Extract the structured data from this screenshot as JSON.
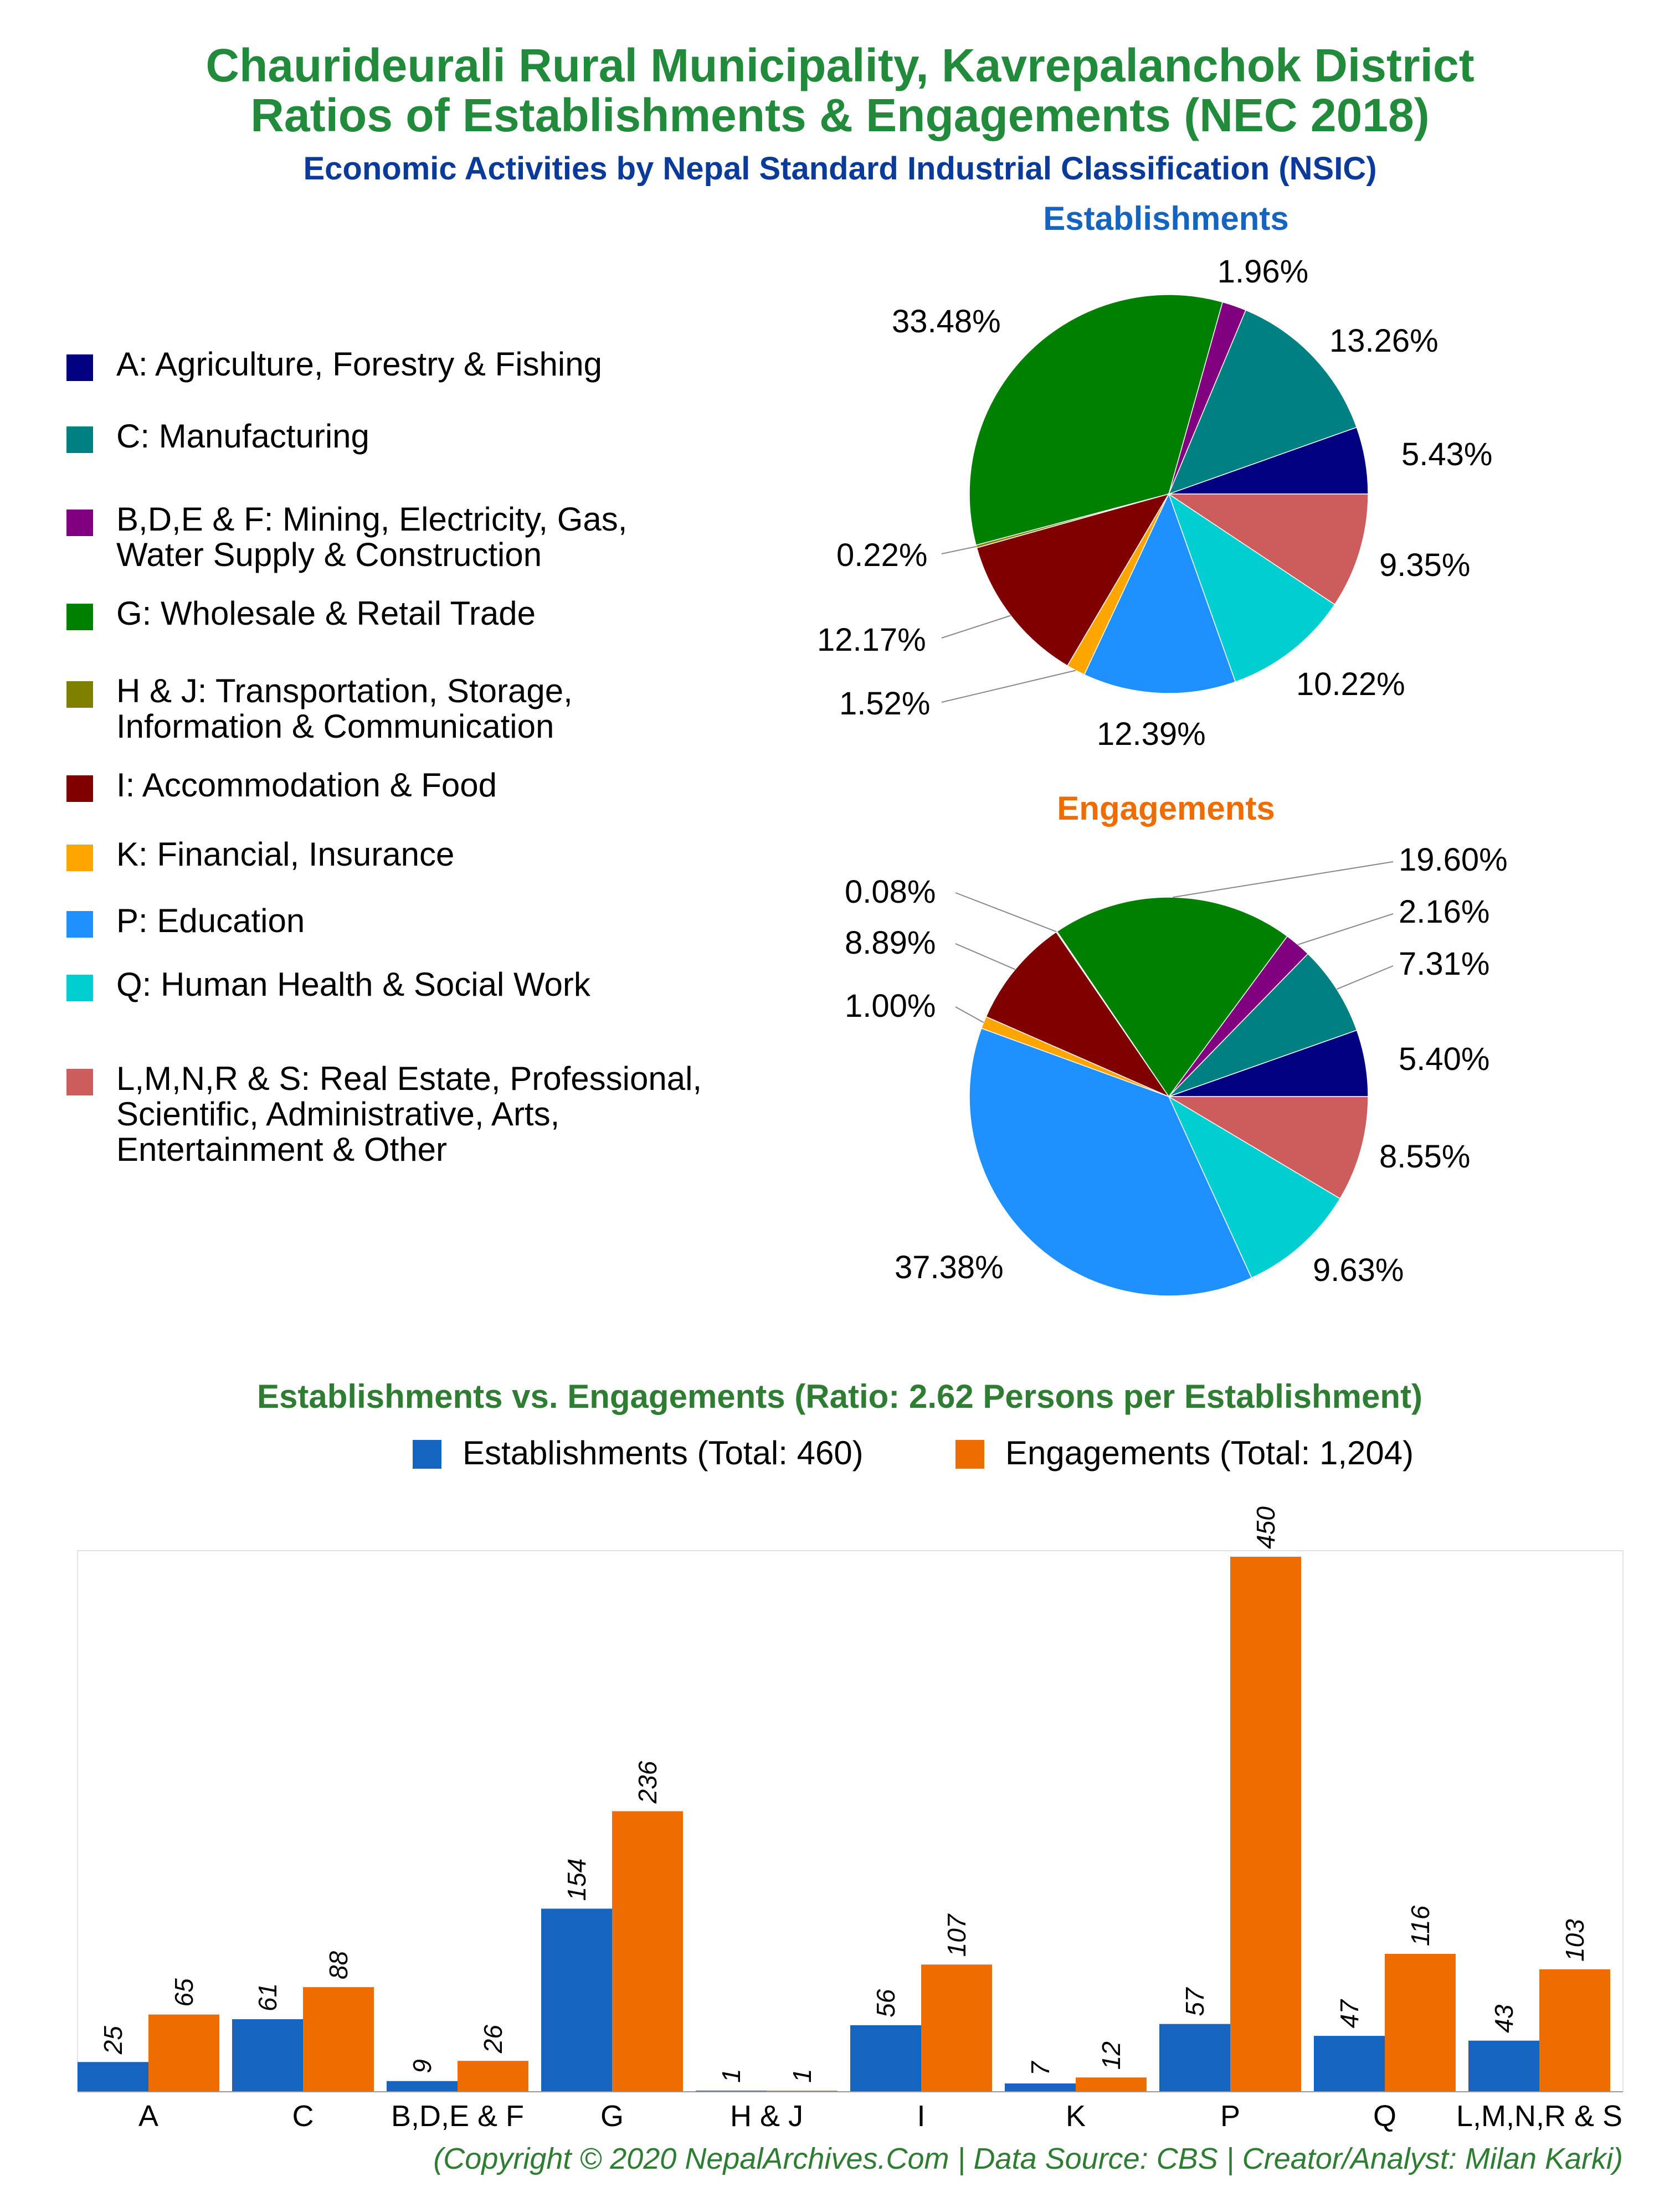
{
  "header": {
    "title_line1": "Chaurideurali Rural Municipality, Kavrepalanchok District",
    "title_line2": "Ratios of Establishments & Engagements (NEC 2018)",
    "subtitle": "Economic Activities by Nepal Standard Industrial Classification (NSIC)"
  },
  "legend": [
    {
      "label": "A: Agriculture, Forestry & Fishing",
      "color": "#000080"
    },
    {
      "label": "C: Manufacturing",
      "color": "#008080"
    },
    {
      "label": "B,D,E & F: Mining, Electricity, Gas,\nWater Supply & Construction",
      "color": "#800080"
    },
    {
      "label": "G: Wholesale & Retail Trade",
      "color": "#008000"
    },
    {
      "label": "H & J: Transportation, Storage,\nInformation & Communication",
      "color": "#808000"
    },
    {
      "label": "I: Accommodation & Food",
      "color": "#800000"
    },
    {
      "label": "K: Financial, Insurance",
      "color": "#ffa500"
    },
    {
      "label": "P: Education",
      "color": "#1e90ff"
    },
    {
      "label": "Q: Human Health & Social Work",
      "color": "#00ced1"
    },
    {
      "label": "L,M,N,R & S: Real Estate, Professional,\nScientific, Administrative, Arts,\nEntertainment & Other",
      "color": "#cd5c5c"
    }
  ],
  "chart_data": [
    {
      "type": "pie",
      "title": "Establishments",
      "title_color": "#1565c0",
      "slices": [
        {
          "category": "A",
          "value": 5.43,
          "label": "5.43%",
          "color": "#000080"
        },
        {
          "category": "C",
          "value": 13.26,
          "label": "13.26%",
          "color": "#008080"
        },
        {
          "category": "B,D,E & F",
          "value": 1.96,
          "label": "1.96%",
          "color": "#800080"
        },
        {
          "category": "G",
          "value": 33.48,
          "label": "33.48%",
          "color": "#008000"
        },
        {
          "category": "H & J",
          "value": 0.22,
          "label": "0.22%",
          "color": "#808000"
        },
        {
          "category": "I",
          "value": 12.17,
          "label": "12.17%",
          "color": "#800000"
        },
        {
          "category": "K",
          "value": 1.52,
          "label": "1.52%",
          "color": "#ffa500"
        },
        {
          "category": "P",
          "value": 12.39,
          "label": "12.39%",
          "color": "#1e90ff"
        },
        {
          "category": "Q",
          "value": 10.22,
          "label": "10.22%",
          "color": "#00ced1"
        },
        {
          "category": "L,M,N,R & S",
          "value": 9.35,
          "label": "9.35%",
          "color": "#cd5c5c"
        }
      ]
    },
    {
      "type": "pie",
      "title": "Engagements",
      "title_color": "#ef6c00",
      "slices": [
        {
          "category": "A",
          "value": 5.4,
          "label": "5.40%",
          "color": "#000080"
        },
        {
          "category": "C",
          "value": 7.31,
          "label": "7.31%",
          "color": "#008080"
        },
        {
          "category": "B,D,E & F",
          "value": 2.16,
          "label": "2.16%",
          "color": "#800080"
        },
        {
          "category": "G",
          "value": 19.6,
          "label": "19.60%",
          "color": "#008000"
        },
        {
          "category": "H & J",
          "value": 0.08,
          "label": "0.08%",
          "color": "#808000"
        },
        {
          "category": "I",
          "value": 8.89,
          "label": "8.89%",
          "color": "#800000"
        },
        {
          "category": "K",
          "value": 1.0,
          "label": "1.00%",
          "color": "#ffa500"
        },
        {
          "category": "P",
          "value": 37.38,
          "label": "37.38%",
          "color": "#1e90ff"
        },
        {
          "category": "Q",
          "value": 9.63,
          "label": "9.63%",
          "color": "#00ced1"
        },
        {
          "category": "L,M,N,R & S",
          "value": 8.55,
          "label": "8.55%",
          "color": "#cd5c5c"
        }
      ]
    },
    {
      "type": "bar",
      "title": "Establishments vs. Engagements (Ratio: 2.62 Persons per Establishment)",
      "title_color": "#2e7d32",
      "categories": [
        "A",
        "C",
        "B,D,E & F",
        "G",
        "H & J",
        "I",
        "K",
        "P",
        "Q",
        "L,M,N,R & S"
      ],
      "series": [
        {
          "name": "Establishments (Total: 460)",
          "color": "#1565c0",
          "values": [
            25,
            61,
            9,
            154,
            1,
            56,
            7,
            57,
            47,
            43
          ]
        },
        {
          "name": "Engagements (Total: 1,204)",
          "color": "#ef6c00",
          "values": [
            65,
            88,
            26,
            236,
            1,
            107,
            12,
            450,
            116,
            103
          ]
        }
      ],
      "ylim": [
        0,
        470
      ],
      "legend_position": "top-right"
    }
  ],
  "footer": {
    "text": "(Copyright © 2020 NepalArchives.Com | Data Source: CBS | Creator/Analyst: Milan Karki)",
    "color": "#2e7d32"
  }
}
